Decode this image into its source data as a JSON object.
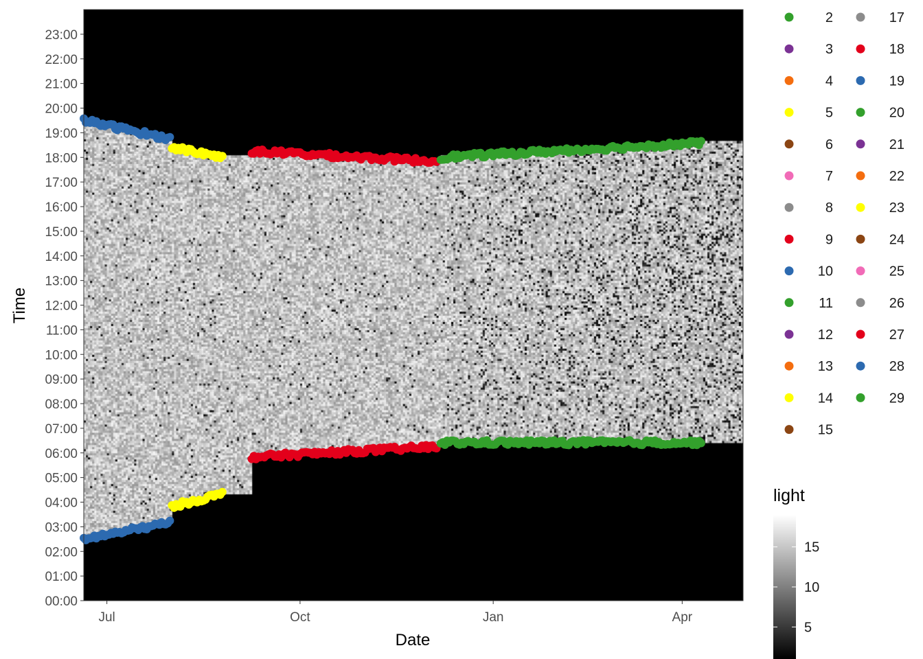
{
  "chart_data": {
    "type": "heatmap",
    "title": "",
    "xlabel": "Date",
    "ylabel": "Time",
    "x_range": [
      "2020-06-20",
      "2021-04-30"
    ],
    "y_range": [
      "00:00",
      "24:00"
    ],
    "x_ticks": [
      {
        "date": "2020-07-01",
        "label": "Jul"
      },
      {
        "date": "2020-10-01",
        "label": "Oct"
      },
      {
        "date": "2021-01-01",
        "label": "Jan"
      },
      {
        "date": "2021-04-01",
        "label": "Apr"
      }
    ],
    "y_ticks": [
      "00:00",
      "01:00",
      "02:00",
      "03:00",
      "04:00",
      "05:00",
      "06:00",
      "07:00",
      "08:00",
      "09:00",
      "10:00",
      "11:00",
      "12:00",
      "13:00",
      "14:00",
      "15:00",
      "16:00",
      "17:00",
      "18:00",
      "19:00",
      "20:00",
      "21:00",
      "22:00",
      "23:00"
    ],
    "fill_scale": {
      "title": "light",
      "palette": "greyscale",
      "range": [
        1,
        19
      ],
      "breaks": [
        5,
        10,
        15
      ]
    },
    "point_series_legend": {
      "columns": 2,
      "entries": [
        {
          "name": "2",
          "color": "#33a02c"
        },
        {
          "name": "3",
          "color": "#7b3294"
        },
        {
          "name": "4",
          "color": "#f46d0f"
        },
        {
          "name": "5",
          "color": "#ffff00"
        },
        {
          "name": "6",
          "color": "#8b4513"
        },
        {
          "name": "7",
          "color": "#f16bb7"
        },
        {
          "name": "8",
          "color": "#8c8c8c"
        },
        {
          "name": "9",
          "color": "#e3001b"
        },
        {
          "name": "10",
          "color": "#2c6ab0"
        },
        {
          "name": "11",
          "color": "#33a02c"
        },
        {
          "name": "12",
          "color": "#7b3294"
        },
        {
          "name": "13",
          "color": "#f46d0f"
        },
        {
          "name": "14",
          "color": "#ffff00"
        },
        {
          "name": "15",
          "color": "#8b4513"
        },
        {
          "name": "17",
          "color": "#8c8c8c"
        },
        {
          "name": "18",
          "color": "#e3001b"
        },
        {
          "name": "19",
          "color": "#2c6ab0"
        },
        {
          "name": "20",
          "color": "#33a02c"
        },
        {
          "name": "21",
          "color": "#7b3294"
        },
        {
          "name": "22",
          "color": "#f46d0f"
        },
        {
          "name": "23",
          "color": "#ffff00"
        },
        {
          "name": "24",
          "color": "#8b4513"
        },
        {
          "name": "25",
          "color": "#f16bb7"
        },
        {
          "name": "26",
          "color": "#8c8c8c"
        },
        {
          "name": "27",
          "color": "#e3001b"
        },
        {
          "name": "28",
          "color": "#2c6ab0"
        },
        {
          "name": "29",
          "color": "#33a02c"
        }
      ]
    },
    "twilight_segments": [
      {
        "name": "10",
        "start": "2020-06-20",
        "end": "2020-07-31",
        "sunrise": [
          "02:30",
          "03:10"
        ],
        "sunset": [
          "19:30",
          "18:45"
        ]
      },
      {
        "name": "14",
        "start": "2020-08-01",
        "end": "2020-08-25",
        "sunrise": [
          "03:50",
          "04:20"
        ],
        "sunset": [
          "18:25",
          "18:00"
        ]
      },
      {
        "name": "9",
        "start": "2020-09-08",
        "end": "2020-12-05",
        "sunrise": [
          "05:50",
          "06:15"
        ],
        "sunset": [
          "18:15",
          "17:50"
        ]
      },
      {
        "name": "20",
        "start": "2020-12-07",
        "end": "2021-04-10",
        "sunrise": [
          "06:25",
          "06:25"
        ],
        "sunset": [
          "18:00",
          "18:35"
        ]
      }
    ]
  }
}
